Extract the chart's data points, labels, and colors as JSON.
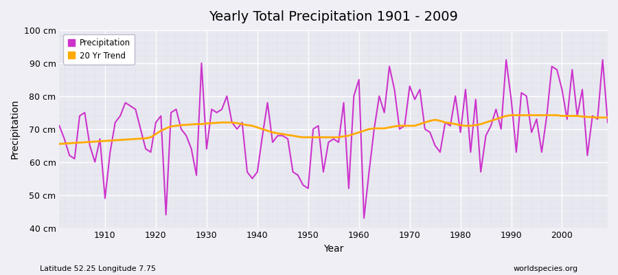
{
  "title": "Yearly Total Precipitation 1901 - 2009",
  "xlabel": "Year",
  "ylabel": "Precipitation",
  "subtitle_left": "Latitude 52.25 Longitude 7.75",
  "subtitle_right": "worldspecies.org",
  "bg_color": "#f0eff5",
  "plot_bg_color": "#e8e8f0",
  "precip_color": "#cc33cc",
  "trend_color": "#ffaa00",
  "ylim": [
    40,
    100
  ],
  "yticks": [
    40,
    50,
    60,
    70,
    80,
    90,
    100
  ],
  "ytick_labels": [
    "40 cm",
    "50 cm",
    "60 cm",
    "70 cm",
    "80 cm",
    "90 cm",
    "100 cm"
  ],
  "years": [
    1901,
    1902,
    1903,
    1904,
    1905,
    1906,
    1907,
    1908,
    1909,
    1910,
    1911,
    1912,
    1913,
    1914,
    1915,
    1916,
    1917,
    1918,
    1919,
    1920,
    1921,
    1922,
    1923,
    1924,
    1925,
    1926,
    1927,
    1928,
    1929,
    1930,
    1931,
    1932,
    1933,
    1934,
    1935,
    1936,
    1937,
    1938,
    1939,
    1940,
    1941,
    1942,
    1943,
    1944,
    1945,
    1946,
    1947,
    1948,
    1949,
    1950,
    1951,
    1952,
    1953,
    1954,
    1955,
    1956,
    1957,
    1958,
    1959,
    1960,
    1961,
    1962,
    1963,
    1964,
    1965,
    1966,
    1967,
    1968,
    1969,
    1970,
    1971,
    1972,
    1973,
    1974,
    1975,
    1976,
    1977,
    1978,
    1979,
    1980,
    1981,
    1982,
    1983,
    1984,
    1985,
    1986,
    1987,
    1988,
    1989,
    1990,
    1991,
    1992,
    1993,
    1994,
    1995,
    1996,
    1997,
    1998,
    1999,
    2000,
    2001,
    2002,
    2003,
    2004,
    2005,
    2006,
    2007,
    2008,
    2009
  ],
  "precip": [
    71,
    67,
    62,
    61,
    74,
    75,
    65,
    60,
    67,
    49,
    63,
    72,
    74,
    78,
    77,
    76,
    70,
    64,
    63,
    72,
    74,
    44,
    75,
    76,
    70,
    68,
    64,
    56,
    90,
    64,
    76,
    75,
    76,
    80,
    72,
    70,
    72,
    57,
    55,
    57,
    68,
    78,
    66,
    68,
    68,
    67,
    57,
    56,
    53,
    52,
    70,
    71,
    57,
    66,
    67,
    66,
    78,
    52,
    80,
    85,
    43,
    57,
    70,
    80,
    75,
    89,
    82,
    70,
    71,
    83,
    79,
    82,
    70,
    69,
    65,
    63,
    72,
    71,
    80,
    69,
    82,
    63,
    79,
    57,
    68,
    71,
    76,
    70,
    91,
    79,
    63,
    81,
    80,
    69,
    73,
    63,
    74,
    89,
    88,
    82,
    73,
    88,
    74,
    82,
    62,
    74,
    73,
    91,
    72
  ],
  "trend": [
    65.5,
    65.6,
    65.7,
    65.8,
    65.9,
    66.0,
    66.1,
    66.2,
    66.3,
    66.4,
    66.5,
    66.6,
    66.7,
    66.8,
    66.9,
    67.0,
    67.1,
    67.2,
    67.5,
    68.5,
    69.5,
    70.2,
    70.8,
    71.0,
    71.2,
    71.3,
    71.4,
    71.5,
    71.5,
    71.7,
    71.8,
    71.9,
    72.0,
    72.0,
    72.0,
    71.8,
    71.5,
    71.2,
    71.0,
    70.5,
    70.0,
    69.5,
    69.0,
    68.7,
    68.5,
    68.2,
    68.0,
    67.7,
    67.5,
    67.5,
    67.5,
    67.5,
    67.5,
    67.5,
    67.5,
    67.5,
    67.8,
    68.0,
    68.5,
    69.0,
    69.5,
    70.0,
    70.2,
    70.2,
    70.2,
    70.5,
    70.8,
    71.0,
    71.0,
    71.0,
    71.0,
    71.5,
    72.0,
    72.5,
    72.8,
    72.5,
    72.0,
    71.8,
    71.5,
    71.2,
    71.0,
    71.0,
    71.2,
    71.5,
    72.0,
    72.5,
    73.0,
    73.5,
    74.0,
    74.2,
    74.2,
    74.2,
    74.2,
    74.2,
    74.2,
    74.2,
    74.2,
    74.2,
    74.2,
    74.0,
    74.0,
    74.0,
    74.0,
    73.8,
    73.7,
    73.6,
    73.5,
    73.5,
    73.5
  ]
}
